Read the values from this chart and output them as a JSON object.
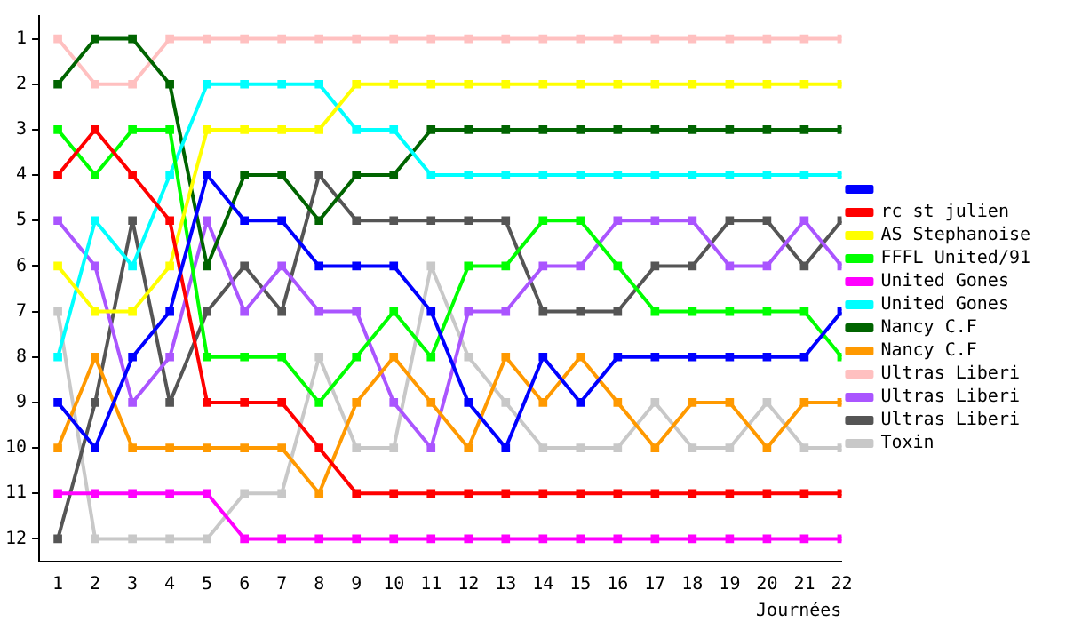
{
  "chart_data": {
    "type": "line",
    "xlabel": "Journées",
    "x": [
      1,
      2,
      3,
      4,
      5,
      6,
      7,
      8,
      9,
      10,
      11,
      12,
      13,
      14,
      15,
      16,
      17,
      18,
      19,
      20,
      21,
      22
    ],
    "xlim": [
      0.5,
      22
    ],
    "xticks": [
      1,
      2,
      3,
      4,
      5,
      6,
      7,
      8,
      9,
      10,
      11,
      12,
      13,
      14,
      15,
      16,
      17,
      18,
      19,
      20,
      21,
      22
    ],
    "ylim": [
      12.5,
      0.5
    ],
    "yticks": [
      1,
      2,
      3,
      4,
      5,
      6,
      7,
      8,
      9,
      10,
      11,
      12
    ],
    "grid": false,
    "legend": "right",
    "marker": "square",
    "line_style": "solid",
    "series": [
      {
        "color": "#0000ff",
        "values": [
          9,
          10,
          8,
          7,
          4,
          5,
          5,
          6,
          6,
          6,
          7,
          9,
          10,
          8,
          9,
          8,
          8,
          8,
          8,
          8,
          8,
          7
        ]
      },
      {
        "name": "rc st julien",
        "color": "#ff0000",
        "values": [
          4,
          3,
          4,
          5,
          9,
          9,
          9,
          10,
          11,
          11,
          11,
          11,
          11,
          11,
          11,
          11,
          11,
          11,
          11,
          11,
          11,
          11
        ]
      },
      {
        "name": "AS Stephanoise",
        "color": "#ffff00",
        "values": [
          6,
          7,
          7,
          6,
          3,
          3,
          3,
          3,
          2,
          2,
          2,
          2,
          2,
          2,
          2,
          2,
          2,
          2,
          2,
          2,
          2,
          2
        ]
      },
      {
        "name": "FFFL United/91",
        "color": "#00ff00",
        "values": [
          3,
          4,
          3,
          3,
          8,
          8,
          8,
          9,
          8,
          7,
          8,
          6,
          6,
          5,
          5,
          6,
          7,
          7,
          7,
          7,
          7,
          8
        ]
      },
      {
        "name": "United Gones",
        "color": "#ff00ff",
        "values": [
          11,
          11,
          11,
          11,
          11,
          12,
          12,
          12,
          12,
          12,
          12,
          12,
          12,
          12,
          12,
          12,
          12,
          12,
          12,
          12,
          12,
          12
        ]
      },
      {
        "name": "United Gones",
        "color": "#00ffff",
        "values": [
          8,
          5,
          6,
          4,
          2,
          2,
          2,
          2,
          3,
          3,
          4,
          4,
          4,
          4,
          4,
          4,
          4,
          4,
          4,
          4,
          4,
          4
        ]
      },
      {
        "name": "Nancy C.F",
        "color": "#006400",
        "values": [
          2,
          1,
          1,
          2,
          6,
          4,
          4,
          5,
          4,
          4,
          3,
          3,
          3,
          3,
          3,
          3,
          3,
          3,
          3,
          3,
          3,
          3
        ]
      },
      {
        "name": "Nancy C.F",
        "color": "#ff9900",
        "values": [
          10,
          8,
          10,
          10,
          10,
          10,
          10,
          11,
          9,
          8,
          9,
          10,
          8,
          9,
          8,
          9,
          10,
          9,
          9,
          10,
          9,
          9
        ]
      },
      {
        "name": "Ultras Liberi",
        "color": "#ffc0c0",
        "values": [
          1,
          2,
          2,
          1,
          1,
          1,
          1,
          1,
          1,
          1,
          1,
          1,
          1,
          1,
          1,
          1,
          1,
          1,
          1,
          1,
          1,
          1
        ]
      },
      {
        "name": "Ultras Liberi",
        "color": "#aa55ff",
        "values": [
          5,
          6,
          9,
          8,
          5,
          7,
          6,
          7,
          7,
          9,
          10,
          7,
          7,
          6,
          6,
          5,
          5,
          5,
          6,
          6,
          5,
          6
        ]
      },
      {
        "name": "Ultras Liberi",
        "color": "#555555",
        "values": [
          12,
          9,
          5,
          9,
          7,
          6,
          7,
          4,
          5,
          5,
          5,
          5,
          5,
          7,
          7,
          7,
          6,
          6,
          5,
          5,
          6,
          5
        ]
      },
      {
        "name": "Toxin",
        "color": "#c8c8c8",
        "values": [
          7,
          12,
          12,
          12,
          12,
          11,
          11,
          8,
          10,
          10,
          6,
          8,
          9,
          10,
          10,
          10,
          9,
          10,
          10,
          9,
          10,
          10
        ]
      }
    ]
  }
}
